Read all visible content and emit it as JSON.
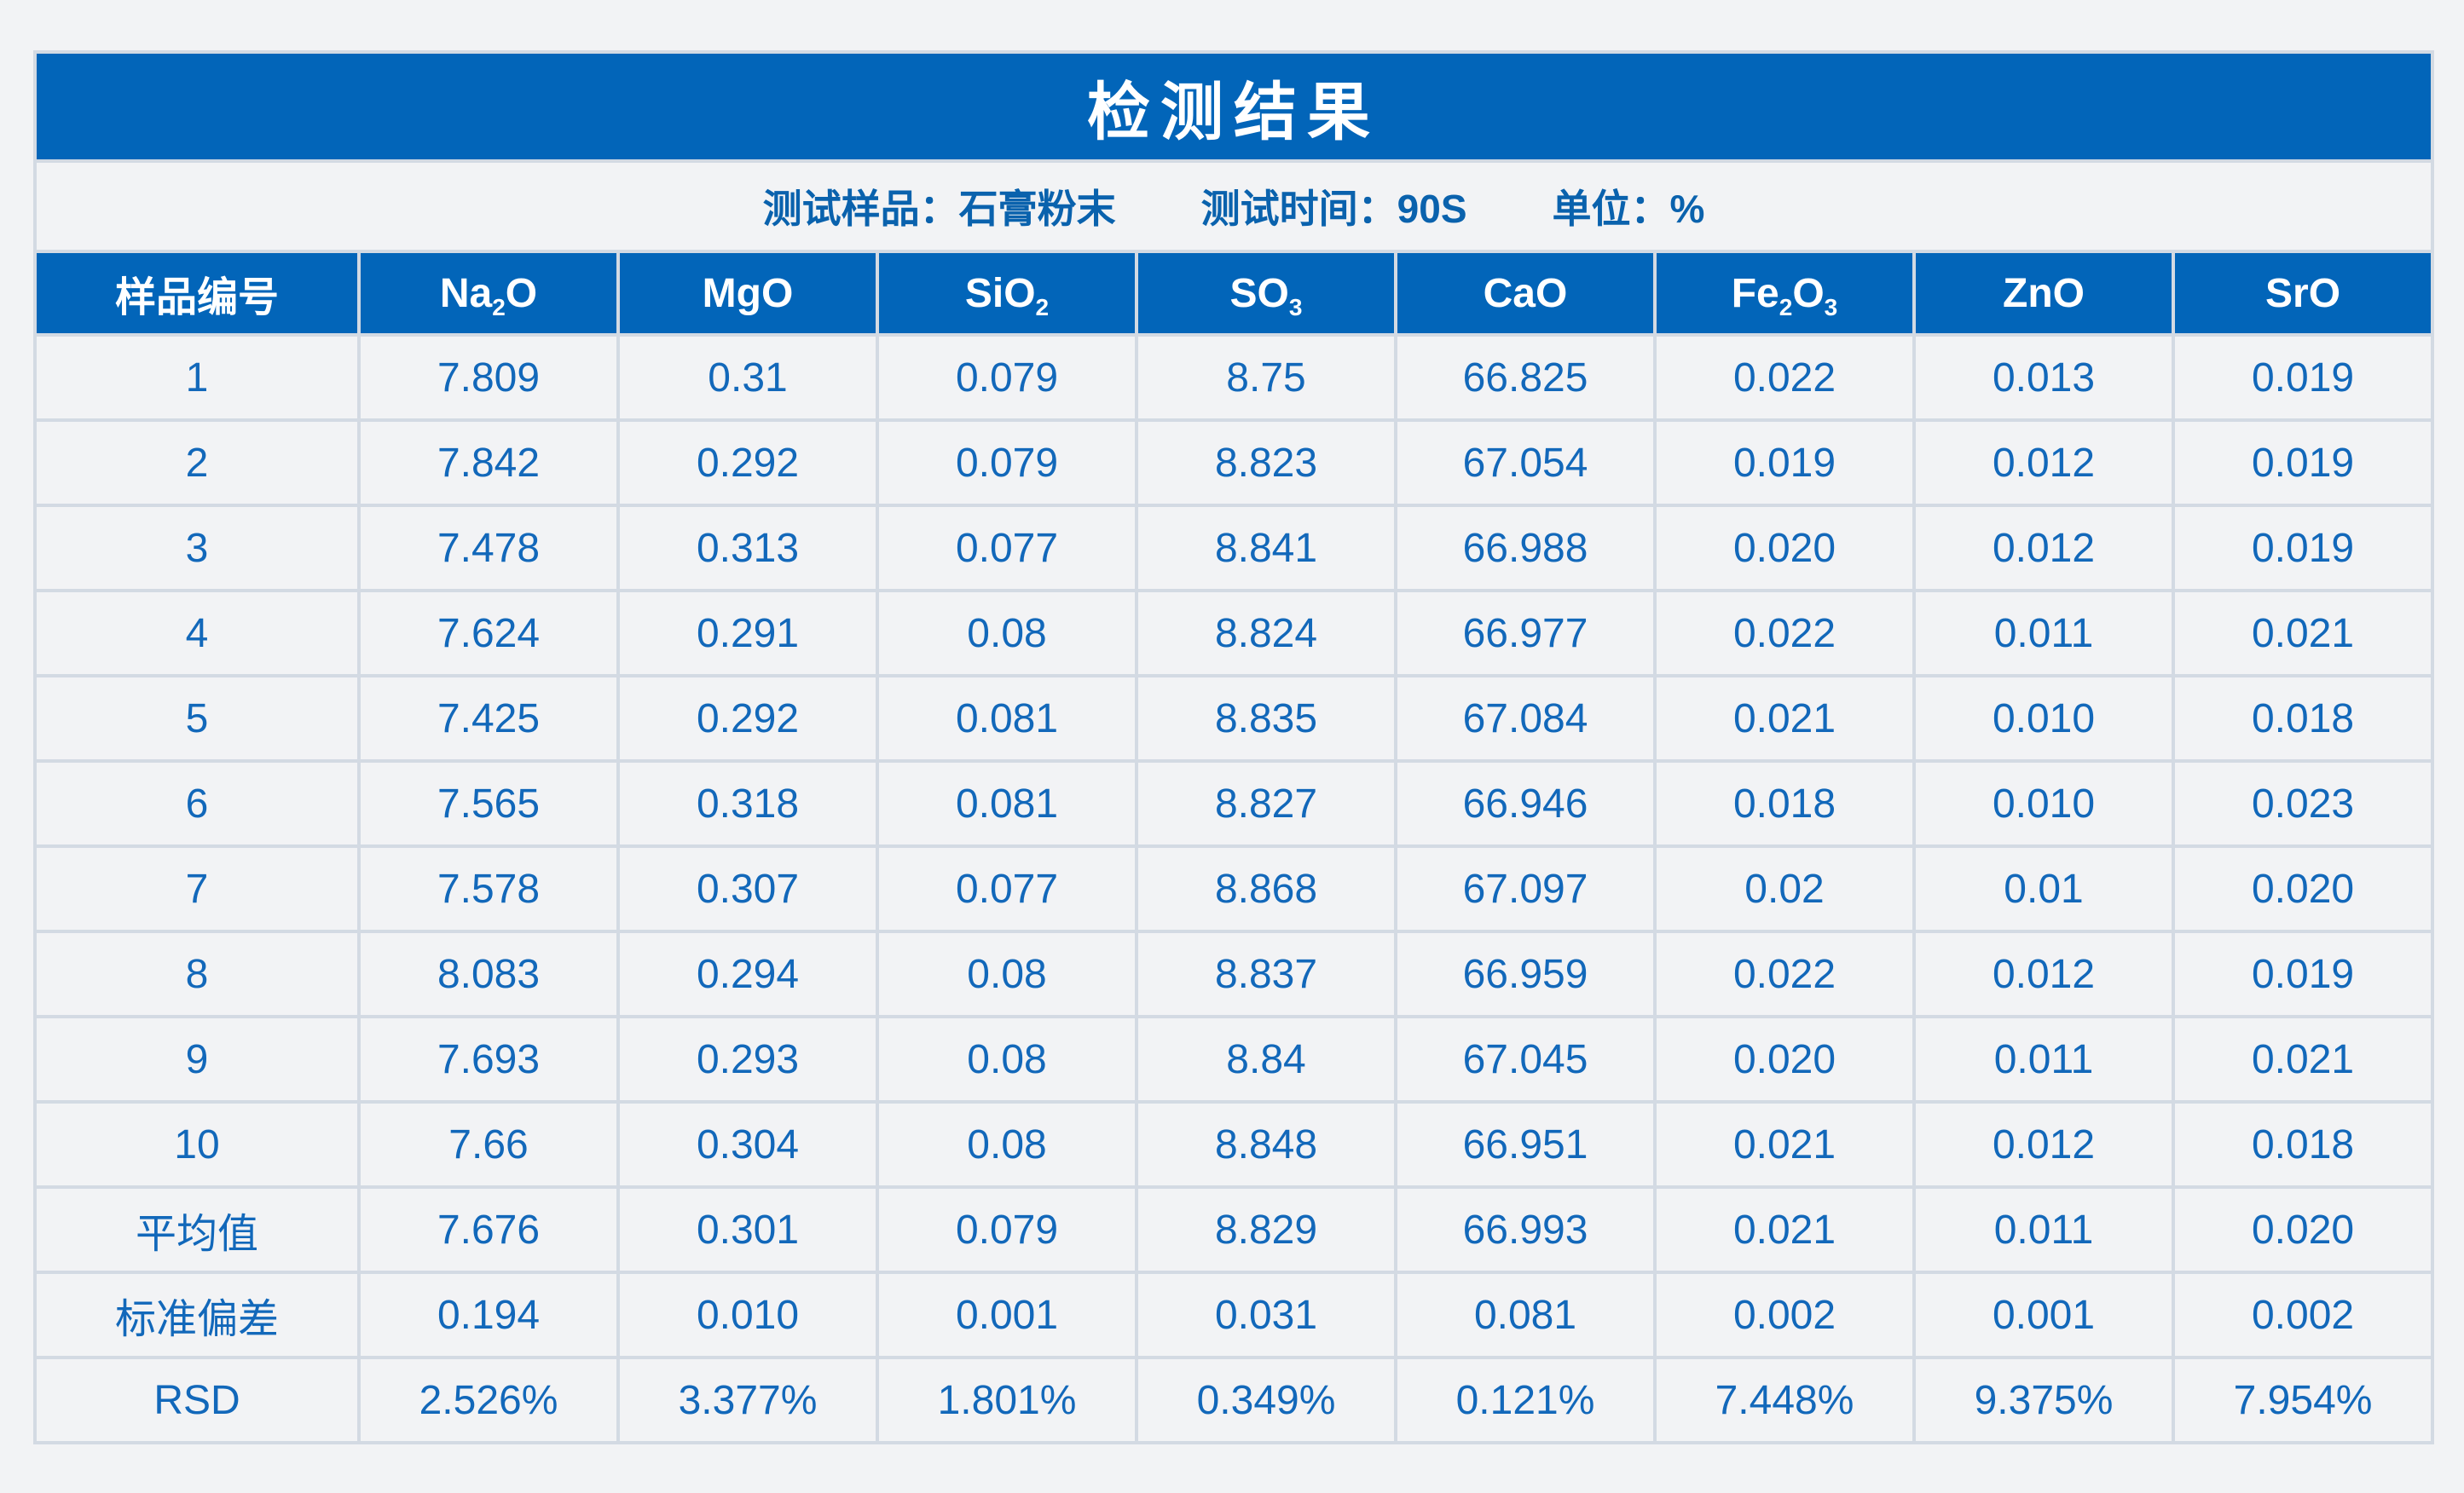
{
  "title": "检测结果",
  "info": {
    "sample_label": "测试样品：",
    "sample_value": "石膏粉末",
    "time_label": "测试时间：",
    "time_value": "90S",
    "unit_label": "单位：",
    "unit_value": "%"
  },
  "columns": [
    {
      "base": "样品编号",
      "sub": ""
    },
    {
      "base": "Na",
      "sub": "2",
      "tail": "O"
    },
    {
      "base": "MgO",
      "sub": "",
      "tail": ""
    },
    {
      "base": "SiO",
      "sub": "2",
      "tail": ""
    },
    {
      "base": "SO",
      "sub": "3",
      "tail": ""
    },
    {
      "base": "CaO",
      "sub": "",
      "tail": ""
    },
    {
      "base": "Fe",
      "sub": "2",
      "tail": "O",
      "sub2": "3"
    },
    {
      "base": "ZnO",
      "sub": "",
      "tail": ""
    },
    {
      "base": "SrO",
      "sub": "",
      "tail": ""
    }
  ],
  "rows": [
    [
      "1",
      "7.809",
      "0.31",
      "0.079",
      "8.75",
      "66.825",
      "0.022",
      "0.013",
      "0.019"
    ],
    [
      "2",
      "7.842",
      "0.292",
      "0.079",
      "8.823",
      "67.054",
      "0.019",
      "0.012",
      "0.019"
    ],
    [
      "3",
      "7.478",
      "0.313",
      "0.077",
      "8.841",
      "66.988",
      "0.020",
      "0.012",
      "0.019"
    ],
    [
      "4",
      "7.624",
      "0.291",
      "0.08",
      "8.824",
      "66.977",
      "0.022",
      "0.011",
      "0.021"
    ],
    [
      "5",
      "7.425",
      "0.292",
      "0.081",
      "8.835",
      "67.084",
      "0.021",
      "0.010",
      "0.018"
    ],
    [
      "6",
      "7.565",
      "0.318",
      "0.081",
      "8.827",
      "66.946",
      "0.018",
      "0.010",
      "0.023"
    ],
    [
      "7",
      "7.578",
      "0.307",
      "0.077",
      "8.868",
      "67.097",
      "0.02",
      "0.01",
      "0.020"
    ],
    [
      "8",
      "8.083",
      "0.294",
      "0.08",
      "8.837",
      "66.959",
      "0.022",
      "0.012",
      "0.019"
    ],
    [
      "9",
      "7.693",
      "0.293",
      "0.08",
      "8.84",
      "67.045",
      "0.020",
      "0.011",
      "0.021"
    ],
    [
      "10",
      "7.66",
      "0.304",
      "0.08",
      "8.848",
      "66.951",
      "0.021",
      "0.012",
      "0.018"
    ],
    [
      "平均值",
      "7.676",
      "0.301",
      "0.079",
      "8.829",
      "66.993",
      "0.021",
      "0.011",
      "0.020"
    ],
    [
      "标准偏差",
      "0.194",
      "0.010",
      "0.001",
      "0.031",
      "0.081",
      "0.002",
      "0.001",
      "0.002"
    ],
    [
      "RSD",
      "2.526%",
      "3.377%",
      "1.801%",
      "0.349%",
      "0.121%",
      "7.448%",
      "9.375%",
      "7.954%"
    ]
  ],
  "colors": {
    "header_bg": "#0265b9",
    "header_text": "#ffffff",
    "body_text": "#1268ba",
    "border": "#d3dae3",
    "background": "#f2f3f5"
  }
}
